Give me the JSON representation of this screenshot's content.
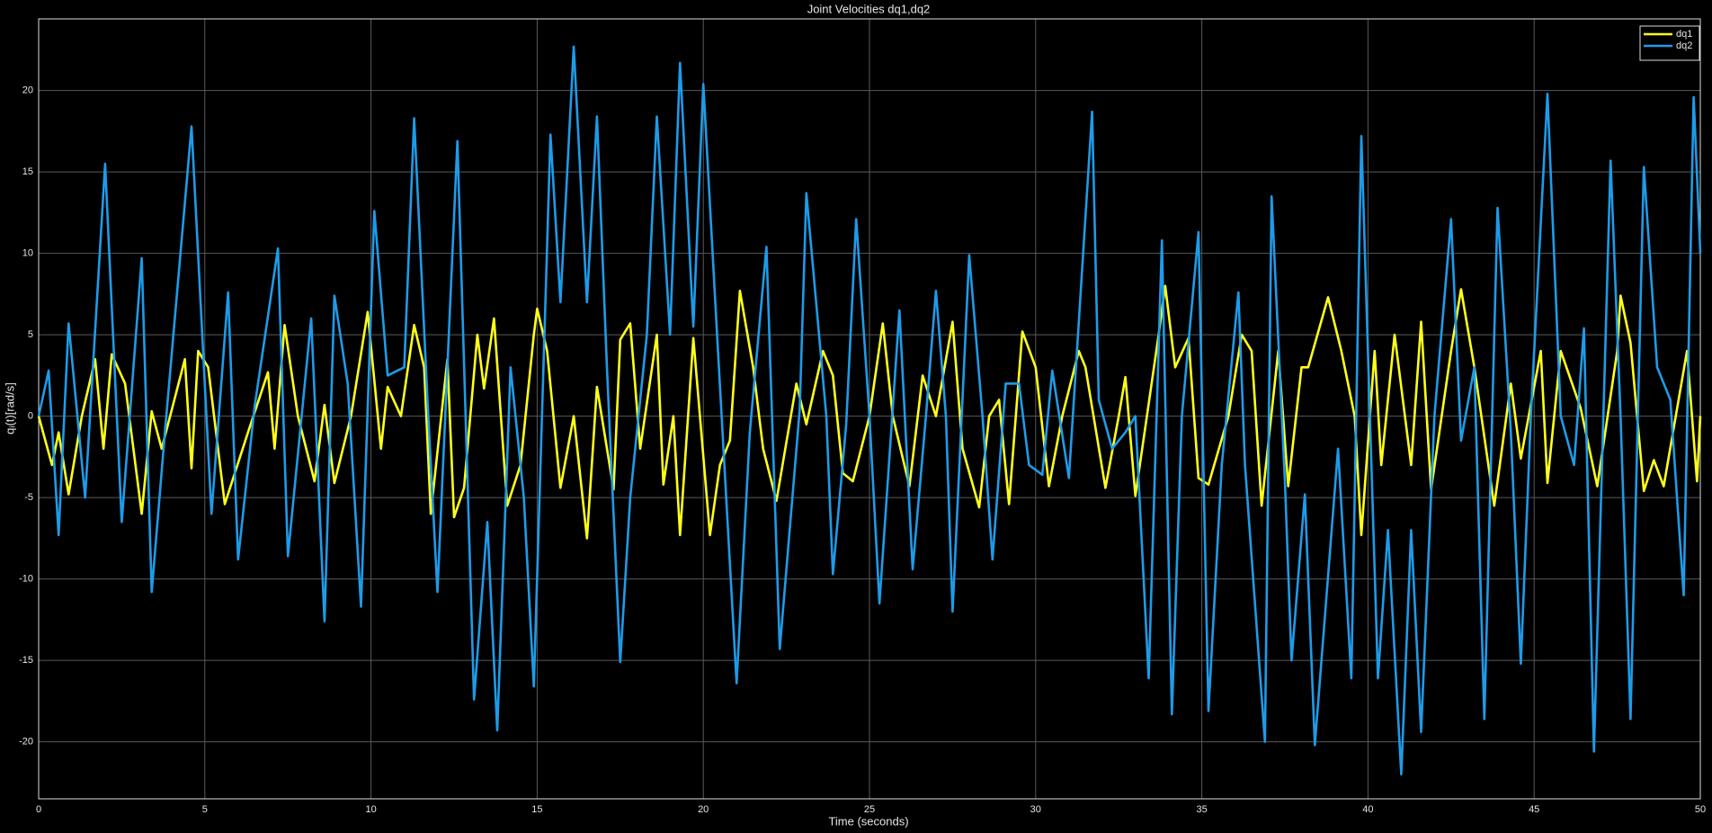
{
  "chart_data": {
    "type": "line",
    "title": "Joint Velocities dq1,dq2",
    "xlabel": "Time (seconds)",
    "ylabel": "qᵢ(t)[rad/s]",
    "xlim": [
      0,
      50
    ],
    "ylim": [
      -23.5,
      24.4
    ],
    "xticks": [
      0,
      5,
      10,
      15,
      20,
      25,
      30,
      35,
      40,
      45,
      50
    ],
    "yticks": [
      -20,
      -15,
      -10,
      -5,
      0,
      5,
      10,
      15,
      20
    ],
    "grid": true,
    "legend": "upper right",
    "series": [
      {
        "name": "dq1",
        "color": "#ffff1a",
        "x": [
          0,
          0.4,
          0.6,
          0.9,
          1.3,
          1.7,
          1.95,
          2.2,
          2.6,
          3.1,
          3.4,
          3.7,
          4.4,
          4.6,
          4.8,
          5.1,
          5.6,
          6.3,
          6.9,
          7.1,
          7.4,
          7.8,
          8.3,
          8.6,
          8.9,
          9.4,
          9.9,
          10.3,
          10.5,
          10.9,
          11.3,
          11.6,
          11.8,
          12.3,
          12.5,
          12.8,
          13.2,
          13.4,
          13.7,
          14.1,
          14.5,
          14.9,
          15.0,
          15.3,
          15.7,
          16.1,
          16.5,
          16.8,
          17.3,
          17.5,
          17.8,
          18.1,
          18.6,
          18.8,
          19.1,
          19.3,
          19.7,
          20.2,
          20.5,
          20.8,
          21.1,
          21.5,
          21.8,
          22.2,
          22.8,
          23.1,
          23.6,
          23.9,
          24.2,
          24.5,
          25.0,
          25.4,
          25.7,
          26.2,
          26.6,
          27.0,
          27.5,
          27.8,
          28.3,
          28.6,
          28.9,
          29.2,
          29.6,
          30.0,
          30.4,
          30.8,
          31.3,
          31.5,
          32.1,
          32.5,
          32.7,
          33.0,
          33.7,
          33.9,
          34.2,
          34.6,
          34.9,
          35.2,
          35.8,
          36.2,
          36.5,
          36.8,
          37.3,
          37.6,
          38.0,
          38.2,
          38.8,
          39.2,
          39.6,
          39.8,
          40.2,
          40.4,
          40.8,
          41.3,
          41.6,
          41.9,
          42.5,
          42.8,
          43.2,
          43.8,
          44.3,
          44.6,
          45.2,
          45.4,
          45.8,
          46.4,
          46.9,
          47.5,
          47.6,
          47.9,
          48.3,
          48.6,
          48.9,
          49.6,
          49.9,
          50
        ],
        "values": [
          0,
          -3,
          -1,
          -4.8,
          0,
          3.5,
          -2,
          3.8,
          2,
          -6,
          0.3,
          -2,
          3.5,
          -3.2,
          4,
          3,
          -5.4,
          -1,
          2.7,
          -2,
          5.6,
          0,
          -4,
          0.7,
          -4.1,
          0,
          6.4,
          -2,
          1.8,
          0,
          5.6,
          3,
          -6,
          3.5,
          -6.2,
          -4.4,
          5,
          1.7,
          6,
          -5.5,
          -3,
          5,
          6.6,
          4,
          -4.4,
          0,
          -7.5,
          1.8,
          -4.5,
          4.7,
          5.7,
          -2,
          5,
          -4.2,
          0,
          -7.3,
          4.8,
          -7.3,
          -3,
          -1.5,
          7.7,
          3,
          -2,
          -5.2,
          2,
          -0.5,
          4,
          2.5,
          -3.5,
          -4,
          0,
          5.7,
          0,
          -4.3,
          2.5,
          0,
          5.8,
          -2,
          -5.6,
          0,
          1,
          -5.4,
          5.2,
          3,
          -4.3,
          0,
          4,
          3,
          -4.4,
          0,
          2.4,
          -4.9,
          5,
          8,
          3,
          4.8,
          -3.8,
          -4.2,
          0,
          5,
          4,
          -5.5,
          4,
          -4.3,
          3,
          3,
          7.3,
          4,
          0,
          -7.3,
          4,
          -3,
          5,
          -3,
          5.8,
          -4.5,
          4,
          7.8,
          3,
          -5.5,
          2,
          -2.6,
          4,
          -4.1,
          4,
          0.5,
          -4.3,
          4,
          7.4,
          4.5,
          -4.6,
          -2.7,
          -4.3,
          4,
          -4,
          0
        ]
      },
      {
        "name": "dq2",
        "color": "#1e9be8",
        "x": [
          0,
          0.3,
          0.6,
          0.9,
          1.4,
          2.0,
          2.5,
          3.1,
          3.4,
          3.8,
          4.6,
          5.2,
          5.7,
          6.0,
          6.5,
          7.2,
          7.5,
          8.2,
          8.6,
          8.9,
          9.3,
          9.7,
          10.1,
          10.5,
          11.0,
          11.3,
          11.7,
          12.0,
          12.6,
          13.1,
          13.5,
          13.8,
          14.2,
          14.6,
          14.9,
          15.4,
          15.7,
          16.1,
          16.5,
          16.8,
          17.1,
          17.5,
          17.8,
          18.3,
          18.6,
          19.0,
          19.3,
          19.7,
          20.0,
          20.4,
          21.0,
          21.4,
          21.9,
          22.3,
          22.9,
          23.1,
          23.7,
          23.9,
          24.3,
          24.6,
          25.0,
          25.3,
          25.9,
          26.3,
          26.7,
          27.0,
          27.3,
          27.5,
          28.0,
          28.4,
          28.7,
          29.1,
          29.5,
          29.8,
          30.2,
          30.5,
          31.0,
          31.7,
          31.9,
          32.3,
          32.7,
          33.0,
          33.4,
          33.8,
          34.1,
          34.4,
          34.9,
          35.2,
          35.6,
          36.1,
          36.3,
          36.9,
          37.1,
          37.5,
          37.7,
          38.1,
          38.4,
          39.1,
          39.5,
          39.8,
          40.3,
          40.6,
          41.0,
          41.3,
          41.6,
          42.0,
          42.5,
          42.8,
          43.2,
          43.5,
          43.9,
          44.3,
          44.6,
          44.9,
          45.4,
          45.8,
          46.2,
          46.5,
          46.8,
          47.3,
          47.6,
          47.9,
          48.3,
          48.7,
          49.1,
          49.5,
          49.8,
          50
        ],
        "values": [
          0,
          2.8,
          -7.3,
          5.7,
          -5,
          15.5,
          -6.5,
          9.7,
          -10.8,
          -1,
          17.8,
          -6,
          7.6,
          -8.8,
          0.6,
          10.3,
          -8.6,
          6,
          -12.6,
          7.4,
          2,
          -11.7,
          12.6,
          2.5,
          3,
          18.3,
          1,
          -10.8,
          16.9,
          -17.4,
          -6.5,
          -19.3,
          3,
          -5,
          -16.6,
          17.3,
          7,
          22.7,
          7,
          18.4,
          3,
          -15.1,
          -5,
          5,
          18.4,
          5,
          21.7,
          5.5,
          20.4,
          5.5,
          -16.4,
          -1,
          10.4,
          -14.3,
          0.4,
          13.7,
          0,
          -9.7,
          -0.5,
          12.1,
          0,
          -11.5,
          6.5,
          -9.4,
          0,
          7.7,
          0,
          -12,
          9.9,
          0,
          -8.8,
          2,
          2,
          -3,
          -3.6,
          2.8,
          -3.8,
          18.7,
          1,
          -2,
          -1,
          0,
          -16.1,
          10.8,
          -18.3,
          0,
          11.3,
          -18.1,
          -3,
          7.6,
          -3,
          -20,
          13.5,
          -4,
          -15,
          -4.8,
          -20.2,
          -2,
          -16.1,
          17.2,
          -16.1,
          -7,
          -22,
          -7,
          -19.4,
          0,
          12.1,
          -1.5,
          3,
          -18.6,
          12.8,
          -1,
          -15.2,
          0,
          19.8,
          0,
          -3,
          5.4,
          -20.6,
          15.7,
          0,
          -18.6,
          15.3,
          3,
          1,
          -11,
          19.6,
          10
        ]
      }
    ]
  }
}
